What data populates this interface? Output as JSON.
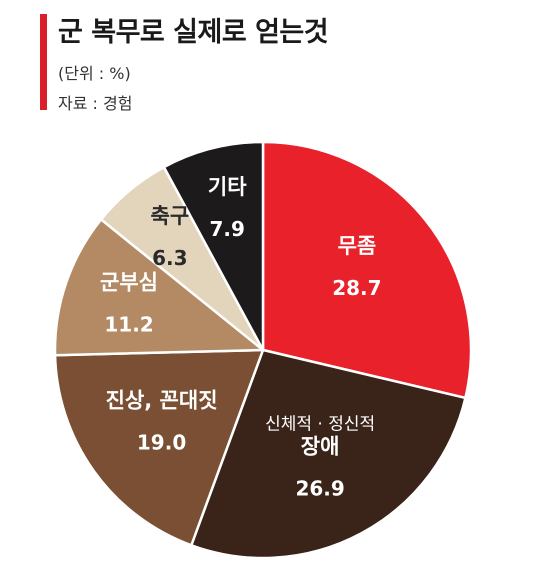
{
  "header": {
    "title": "군 복무로 실제로 얻는것",
    "unit": "(단위 : %)",
    "source": "자료 : 경험"
  },
  "colors": {
    "accent": "#d9202a"
  },
  "chart_data": {
    "type": "pie",
    "title": "군 복무로 실제로 얻는것",
    "unit": "%",
    "slices": [
      {
        "label": "무좀",
        "value": 28.7,
        "value_text": "28.7",
        "color": "#e8212b",
        "text_color": "#ffffff"
      },
      {
        "label": "장애",
        "sublabel": "신체적 · 정신적",
        "value": 26.9,
        "value_text": "26.9",
        "color": "#3a2318",
        "text_color": "#ffffff"
      },
      {
        "label": "진상, 꼰대짓",
        "value": 19.0,
        "value_text": "19.0",
        "color": "#7a4f33",
        "text_color": "#ffffff"
      },
      {
        "label": "군부심",
        "value": 11.2,
        "value_text": "11.2",
        "color": "#b48a64",
        "text_color": "#ffffff"
      },
      {
        "label": "축구",
        "value": 6.3,
        "value_text": "6.3",
        "color": "#e3d5bc",
        "text_color": "#2a2a2a"
      },
      {
        "label": "기타",
        "value": 7.9,
        "value_text": "7.9",
        "color": "#1d1a1b",
        "text_color": "#ffffff"
      }
    ]
  }
}
